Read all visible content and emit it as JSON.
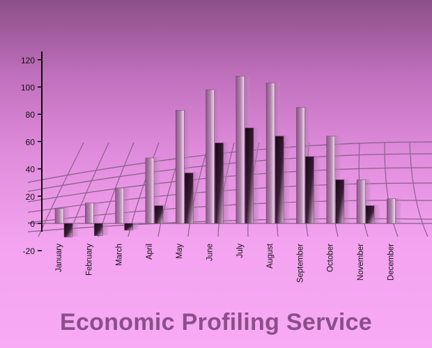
{
  "chart_data": {
    "type": "bar",
    "title": "Economic Profiling Service",
    "categories": [
      "January",
      "February",
      "March",
      "April",
      "May",
      "June",
      "July",
      "August",
      "September",
      "October",
      "November",
      "December"
    ],
    "series": [
      {
        "values": [
          11,
          15,
          26,
          48,
          83,
          98,
          108,
          103,
          85,
          64,
          32,
          18
        ]
      },
      {
        "values": [
          -10,
          -9,
          -5,
          13,
          37,
          59,
          70,
          64,
          49,
          32,
          13,
          null
        ]
      }
    ],
    "yticks": [
      120,
      100,
      80,
      60,
      40,
      20,
      0,
      -20
    ],
    "ylim": [
      -20,
      120
    ],
    "grid": false,
    "colors": {
      "series1_light": "#f3e3f1",
      "series1_dark": "#8c5487",
      "series2_dark": "#140812",
      "series2_light": "#d9b6d6",
      "axis": "#000000",
      "floor_grid": "#8a5f8a"
    }
  }
}
